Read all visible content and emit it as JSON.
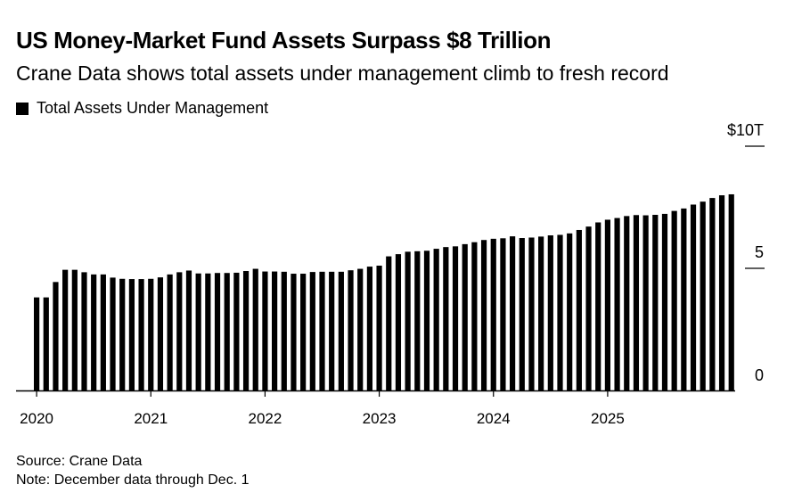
{
  "header": {
    "title": "US Money-Market Fund Assets Surpass $8 Trillion",
    "subtitle": "Crane Data shows total assets under management climb to fresh record"
  },
  "legend": {
    "label": "Total Assets Under Management",
    "color": "#000000"
  },
  "footer": {
    "source": "Source: Crane Data",
    "note": "Note: December data through Dec. 1"
  },
  "chart_data": {
    "type": "bar",
    "title": "US Money-Market Fund Assets Surpass $8 Trillion",
    "subtitle": "Crane Data shows total assets under management climb to fresh record",
    "series": [
      {
        "name": "Total Assets Under Management",
        "color": "#000000",
        "values": [
          3.81,
          3.81,
          4.44,
          4.94,
          4.94,
          4.84,
          4.75,
          4.75,
          4.62,
          4.57,
          4.56,
          4.56,
          4.57,
          4.63,
          4.75,
          4.84,
          4.91,
          4.79,
          4.79,
          4.81,
          4.81,
          4.82,
          4.89,
          4.98,
          4.87,
          4.87,
          4.86,
          4.78,
          4.78,
          4.85,
          4.86,
          4.86,
          4.86,
          4.92,
          4.98,
          5.07,
          5.11,
          5.49,
          5.58,
          5.68,
          5.7,
          5.72,
          5.8,
          5.87,
          5.9,
          5.99,
          6.07,
          6.16,
          6.21,
          6.23,
          6.31,
          6.24,
          6.26,
          6.3,
          6.35,
          6.37,
          6.43,
          6.57,
          6.71,
          6.88,
          6.99,
          7.06,
          7.14,
          7.18,
          7.17,
          7.19,
          7.23,
          7.35,
          7.45,
          7.61,
          7.73,
          7.88,
          7.99,
          8.03
        ]
      }
    ],
    "x_start": "2020-01",
    "x_frequency": "monthly",
    "x_ticks": [
      "2020",
      "2021",
      "2022",
      "2023",
      "2024",
      "2025"
    ],
    "y_ticks": [
      "0",
      "5",
      "$10T"
    ],
    "ylim": [
      0,
      10
    ],
    "xlabel": "",
    "ylabel": "",
    "grid": false,
    "legend_position": "top-left"
  }
}
